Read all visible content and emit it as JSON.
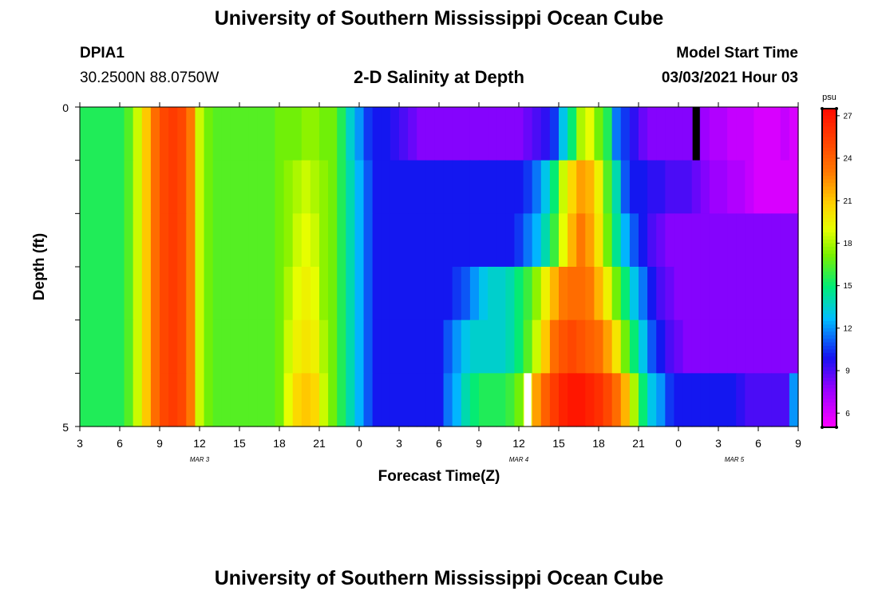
{
  "header": {
    "title": "University of Southern Mississippi Ocean Cube",
    "station_id": "DPIA1",
    "station_coords": "30.2500N 88.0750W",
    "plot_title": "2-D Salinity at Depth",
    "model_start_label": "Model Start Time",
    "model_start_value": "03/03/2021 Hour 03"
  },
  "footer": {
    "title": "University of Southern Mississippi Ocean Cube"
  },
  "chart_data": {
    "type": "heatmap",
    "title": "2-D Salinity at Depth",
    "xlabel": "Forecast Time(Z)",
    "ylabel": "Depth (ft)",
    "x_tick_labels": [
      "3",
      "6",
      "9",
      "12",
      "15",
      "18",
      "21",
      "0",
      "3",
      "6",
      "9",
      "12",
      "15",
      "18",
      "21",
      "0",
      "3",
      "6",
      "9"
    ],
    "date_labels": [
      {
        "label": "MAR 3",
        "at_tick": 3
      },
      {
        "label": "MAR 4",
        "at_tick": 11
      },
      {
        "label": "MAR 5",
        "at_tick": 16.4
      }
    ],
    "y_tick_labels": [
      "0",
      "5"
    ],
    "y_range": [
      0,
      5
    ],
    "colorbar": {
      "unit": "psu",
      "ticks": [
        6,
        9,
        12,
        15,
        18,
        21,
        24,
        27
      ],
      "range": [
        5,
        27.5
      ]
    },
    "columns_per_hour": 1,
    "layers": [
      [
        15.5,
        15.5,
        15.5,
        15.5,
        15.5,
        16.5,
        18.5,
        21,
        23.5,
        25,
        25.5,
        25,
        23,
        18.5,
        17,
        16.5,
        16.5,
        16.5,
        16.5,
        16.5,
        16.5,
        16.5,
        17,
        17,
        17,
        17.5,
        17.5,
        17,
        17,
        15.5,
        13.5,
        12,
        10.5,
        10,
        10,
        9.5,
        9,
        8.5,
        8,
        8,
        8,
        8,
        8,
        8,
        8,
        8,
        8,
        8,
        8,
        8,
        8.5,
        9,
        9.5,
        10.5,
        13,
        15,
        18,
        19,
        17,
        15.5,
        11.5,
        10.5,
        9.5,
        8.5,
        8,
        8,
        8,
        8,
        8,
        8,
        7.5,
        7,
        7,
        6.5,
        6.5,
        6.5,
        6,
        6,
        6,
        6.5,
        6
      ],
      [
        15.5,
        15.5,
        15.5,
        15.5,
        15.5,
        16.5,
        18.5,
        21,
        23.5,
        25,
        25.5,
        25,
        23,
        18.5,
        17,
        16.5,
        16.5,
        16.5,
        16.5,
        16.5,
        16.5,
        16.5,
        17,
        17.5,
        18,
        18.5,
        18,
        17.5,
        17,
        15.5,
        14,
        12.5,
        11,
        10,
        10,
        10,
        10,
        10,
        10,
        10,
        10,
        10,
        10,
        10,
        10,
        10,
        10,
        10,
        10,
        10,
        10.5,
        11.5,
        13,
        15,
        18.5,
        20.5,
        22,
        21.5,
        19.5,
        16.5,
        14,
        11,
        10,
        10,
        9.5,
        9.5,
        9,
        9,
        9,
        8.5,
        8,
        7.5,
        7.5,
        7,
        7,
        6.5,
        6,
        6,
        6,
        6,
        6
      ],
      [
        15.5,
        15.5,
        15.5,
        15.5,
        15.5,
        16.5,
        18.5,
        21,
        23.5,
        25,
        25.5,
        25,
        23,
        18.5,
        17,
        16.5,
        16.5,
        16.5,
        16.5,
        16.5,
        16.5,
        16.5,
        17,
        17.5,
        18.5,
        19,
        18.5,
        17.5,
        17,
        15.5,
        14,
        12.5,
        11,
        10,
        10,
        10,
        10,
        10,
        10,
        10,
        10,
        10,
        10,
        10,
        10,
        10,
        10,
        10,
        10,
        10.5,
        11.5,
        12.5,
        14,
        16,
        19,
        21.5,
        23,
        22,
        20,
        17,
        14.5,
        12.5,
        11,
        10,
        9,
        8.5,
        8,
        8,
        8,
        8,
        8,
        8,
        8,
        8,
        8,
        8,
        8,
        8,
        8,
        8,
        8
      ],
      [
        15.5,
        15.5,
        15.5,
        15.5,
        15.5,
        16.5,
        18.5,
        21,
        23.5,
        25,
        25.5,
        25,
        23,
        18.5,
        17,
        16.5,
        16.5,
        16.5,
        16.5,
        16.5,
        16.5,
        16.5,
        17,
        18,
        19,
        19.5,
        19,
        17.5,
        17,
        15.5,
        14,
        12.5,
        11,
        10,
        10,
        10,
        10,
        10,
        10,
        10,
        10,
        10,
        10.5,
        11,
        12,
        13,
        13.5,
        13.5,
        14,
        15,
        16,
        17.5,
        19.5,
        21.5,
        23,
        23.5,
        23.5,
        23,
        21.5,
        19.5,
        17,
        15,
        13,
        11.5,
        10,
        9,
        8.5,
        8,
        8,
        8,
        8,
        8,
        8,
        8,
        8,
        8,
        8,
        8,
        8,
        8,
        8
      ],
      [
        15.5,
        15.5,
        15.5,
        15.5,
        15.5,
        16.5,
        18.5,
        21,
        23.5,
        25,
        25.5,
        25,
        23,
        18.5,
        17,
        16.5,
        16.5,
        16.5,
        16.5,
        16.5,
        16.5,
        16.5,
        17,
        18.5,
        19.5,
        20,
        19.5,
        18,
        17,
        15.5,
        14,
        12.5,
        11,
        10,
        10,
        10,
        10,
        10,
        10,
        10,
        10,
        11,
        12,
        13,
        13.5,
        13.5,
        13.5,
        13.5,
        14,
        15,
        16.5,
        18.5,
        21,
        23.5,
        24.5,
        25,
        24.5,
        24,
        23.5,
        22,
        20,
        17,
        15,
        13,
        11,
        10,
        9,
        8.5,
        8,
        8,
        8,
        8,
        8,
        8,
        8,
        8,
        8,
        8,
        8,
        8,
        8
      ],
      [
        15.5,
        15.5,
        15.5,
        15.5,
        15.5,
        16.5,
        18.5,
        21,
        23.5,
        25,
        25.5,
        25,
        23,
        18.5,
        17,
        16.5,
        16.5,
        16.5,
        16.5,
        16.5,
        16.5,
        16.5,
        17,
        19,
        20.5,
        21,
        20.5,
        18.5,
        17,
        15.5,
        14,
        12.5,
        11,
        10,
        10,
        10,
        10,
        10,
        10,
        10,
        10,
        11.5,
        12.5,
        14,
        15,
        15.5,
        15.5,
        15.5,
        16,
        17,
        19,
        22,
        24,
        25.5,
        26.5,
        27,
        27,
        26.5,
        26,
        25,
        23.5,
        21.5,
        18,
        15,
        13,
        12,
        10.5,
        10,
        10,
        10,
        10,
        10,
        10,
        10,
        9.5,
        9,
        9,
        9,
        9,
        9,
        12
      ]
    ],
    "overlays": [
      {
        "layer": 0,
        "column": 69,
        "color": "#000000"
      },
      {
        "layer": 5,
        "column": 50,
        "color": "#ffffff"
      }
    ]
  }
}
